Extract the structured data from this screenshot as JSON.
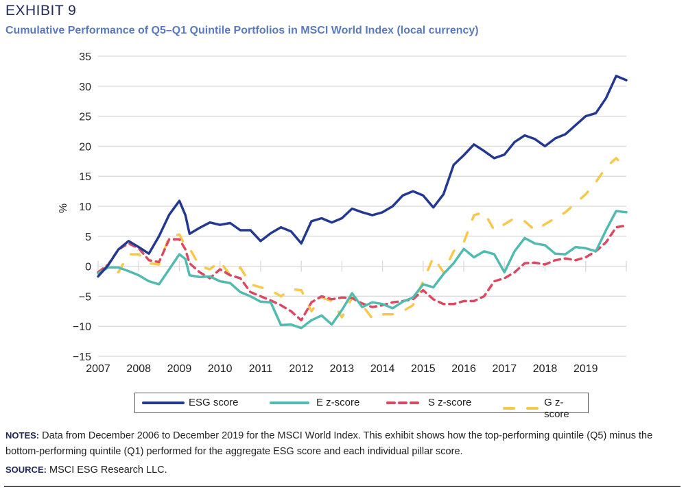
{
  "header": {
    "exhibit": "EXHIBIT 9",
    "subtitle": "Cumulative Performance of Q5–Q1 Quintile Portfolios in MSCI World Index (local currency)"
  },
  "colors": {
    "esg": "#22398f",
    "e": "#52bbb0",
    "s": "#d94a62",
    "g": "#f6c84c",
    "grid": "#dddddd",
    "title": "#232a5c",
    "subtitle": "#5a7abf"
  },
  "chart_data": {
    "type": "line",
    "title": "Cumulative Performance of Q5–Q1 Quintile Portfolios in MSCI World Index (local currency)",
    "xlabel": "",
    "ylabel": "%",
    "xlim": [
      2007,
      2020
    ],
    "ylim": [
      -15,
      35
    ],
    "yticks": [
      -15,
      -10,
      -5,
      0,
      5,
      10,
      15,
      20,
      25,
      30,
      35
    ],
    "ytick_labels": [
      "−15",
      "−10",
      "−5",
      "0",
      "5",
      "10",
      "15",
      "20",
      "25",
      "30",
      "35"
    ],
    "xticks": [
      2007,
      2008,
      2009,
      2010,
      2011,
      2012,
      2013,
      2014,
      2015,
      2016,
      2017,
      2018,
      2019
    ],
    "xtick_labels": [
      "2007",
      "2008",
      "2009",
      "2010",
      "2011",
      "2012",
      "2013",
      "2014",
      "2015",
      "2016",
      "2017",
      "2018",
      "2019"
    ],
    "grid": true,
    "legend_position": "bottom",
    "x": [
      2007.0,
      2007.25,
      2007.5,
      2007.75,
      2008.0,
      2008.25,
      2008.5,
      2008.75,
      2009.0,
      2009.15,
      2009.25,
      2009.5,
      2009.75,
      2010.0,
      2010.25,
      2010.5,
      2010.75,
      2011.0,
      2011.25,
      2011.5,
      2011.75,
      2012.0,
      2012.25,
      2012.5,
      2012.75,
      2013.0,
      2013.25,
      2013.5,
      2013.75,
      2014.0,
      2014.25,
      2014.5,
      2014.75,
      2015.0,
      2015.25,
      2015.5,
      2015.75,
      2016.0,
      2016.25,
      2016.5,
      2016.75,
      2017.0,
      2017.25,
      2017.5,
      2017.75,
      2018.0,
      2018.25,
      2018.5,
      2018.75,
      2019.0,
      2019.25,
      2019.5,
      2019.75,
      2020.0
    ],
    "series": [
      {
        "name": "ESG score",
        "style": "solid",
        "values": [
          -1.7,
          0.2,
          2.8,
          4.2,
          3.2,
          2.1,
          5.0,
          8.6,
          10.9,
          8.5,
          5.4,
          6.4,
          7.3,
          6.9,
          7.2,
          6.0,
          6.0,
          4.2,
          5.5,
          6.5,
          5.8,
          3.8,
          7.5,
          8.0,
          7.3,
          8.0,
          9.6,
          9.0,
          8.5,
          9.0,
          10.0,
          11.8,
          12.5,
          11.8,
          9.8,
          12.0,
          16.9,
          18.5,
          20.3,
          19.2,
          18.0,
          18.6,
          20.7,
          21.8,
          21.2,
          20.0,
          21.3,
          22.0,
          23.5,
          25.0,
          25.5,
          28.0,
          31.7,
          31.0
        ]
      },
      {
        "name": "E z-score",
        "style": "solid",
        "values": [
          -1.2,
          -0.2,
          -0.2,
          -0.8,
          -1.5,
          -2.5,
          -3.0,
          -0.5,
          2.0,
          1.2,
          -1.5,
          -1.8,
          -1.7,
          -2.5,
          -2.8,
          -4.3,
          -5.0,
          -5.9,
          -6.0,
          -9.8,
          -9.7,
          -10.3,
          -9.0,
          -8.2,
          -9.7,
          -7.3,
          -4.5,
          -6.8,
          -6.0,
          -6.3,
          -7.0,
          -5.9,
          -5.2,
          -3.0,
          -3.5,
          -1.3,
          0.5,
          2.9,
          1.5,
          2.5,
          2.0,
          -1.0,
          2.5,
          4.7,
          3.8,
          3.5,
          2.1,
          2.0,
          3.2,
          3.0,
          2.5,
          6.0,
          9.2,
          9.0
        ]
      },
      {
        "name": "S z-score",
        "style": "dashed",
        "values": [
          -1.0,
          0.3,
          2.8,
          3.8,
          3.0,
          1.0,
          0.7,
          4.5,
          4.5,
          2.8,
          0.5,
          -1.0,
          -2.0,
          -0.5,
          -1.5,
          -2.0,
          -4.3,
          -5.0,
          -5.7,
          -6.5,
          -7.5,
          -9.0,
          -6.0,
          -5.0,
          -5.5,
          -5.2,
          -5.3,
          -6.2,
          -6.8,
          -6.5,
          -6.0,
          -5.8,
          -5.5,
          -4.0,
          -5.5,
          -6.3,
          -6.3,
          -5.8,
          -5.8,
          -5.0,
          -2.5,
          -2.0,
          -1.0,
          0.5,
          0.6,
          0.3,
          1.0,
          1.3,
          1.0,
          1.5,
          2.5,
          4.0,
          6.5,
          6.8
        ]
      },
      {
        "name": "G z-score",
        "style": "dashed",
        "values": [
          -1.0,
          0.0,
          -1.0,
          2.0,
          2.0,
          0.5,
          0.3,
          5.0,
          5.3,
          3.3,
          3.0,
          0.0,
          -0.5,
          0.8,
          -1.5,
          -0.2,
          -3.0,
          -3.5,
          -4.0,
          -5.0,
          -3.8,
          -4.0,
          -7.5,
          -5.2,
          -5.8,
          -8.5,
          -5.2,
          -6.5,
          -8.7,
          -8.0,
          -8.0,
          -7.5,
          -6.5,
          -2.5,
          1.5,
          -1.0,
          2.5,
          4.0,
          8.5,
          9.0,
          6.0,
          7.0,
          8.0,
          7.5,
          6.0,
          7.0,
          8.0,
          9.0,
          10.5,
          12.0,
          14.0,
          16.5,
          18.0,
          16.3
        ]
      }
    ]
  },
  "legend": {
    "items": [
      {
        "label": "ESG score"
      },
      {
        "label": "E z-score"
      },
      {
        "label": "S z-score"
      },
      {
        "label": "G z-score"
      }
    ]
  },
  "notes": {
    "label": "NOTES:",
    "text": "Data from December 2006 to December 2019 for the MSCI World Index. This exhibit shows how the top-performing quintile (Q5) minus the bottom-performing quintile (Q1) performed for the aggregate ESG score and each individual pillar score."
  },
  "source": {
    "label": "SOURCE:",
    "text": "MSCI ESG Research LLC."
  }
}
